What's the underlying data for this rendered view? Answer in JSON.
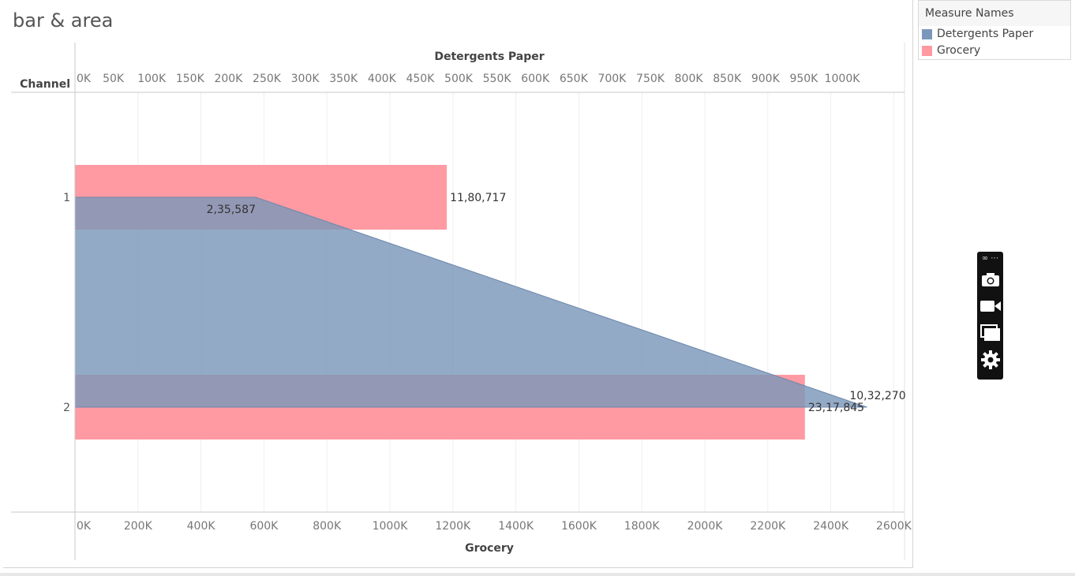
{
  "title": "bar & area",
  "legend": {
    "title": "Measure Names",
    "items": [
      {
        "label": "Detergents Paper",
        "color": "#7b97ba"
      },
      {
        "label": "Grocery",
        "color": "#ff9aa2"
      }
    ]
  },
  "toolbar": {
    "icons": [
      "link-icon",
      "more-icon",
      "camera-icon",
      "video-icon",
      "window-icon",
      "gear-icon"
    ]
  },
  "chart_data": {
    "type": "bar",
    "row_header": "Channel",
    "categories": [
      "1",
      "2"
    ],
    "x_top": {
      "label": "Detergents Paper",
      "range": [
        0,
        1000000
      ],
      "ticks": [
        "0K",
        "50K",
        "100K",
        "150K",
        "200K",
        "250K",
        "300K",
        "350K",
        "400K",
        "450K",
        "500K",
        "550K",
        "600K",
        "650K",
        "700K",
        "750K",
        "800K",
        "850K",
        "900K",
        "950K",
        "1000K"
      ]
    },
    "x_bottom": {
      "label": "Grocery",
      "range": [
        0,
        2600000
      ],
      "ticks": [
        "0K",
        "200K",
        "400K",
        "600K",
        "800K",
        "1000K",
        "1200K",
        "1400K",
        "1600K",
        "1800K",
        "2000K",
        "2200K",
        "2400K",
        "2600K"
      ]
    },
    "series": [
      {
        "name": "Detergents Paper",
        "mark": "area",
        "color": "#7b97ba",
        "values": [
          235587,
          1032270
        ],
        "labels": [
          "2,35,587",
          "10,32,270"
        ]
      },
      {
        "name": "Grocery",
        "mark": "bar",
        "color": "#ff9aa2",
        "values": [
          1180717,
          2317845
        ],
        "labels": [
          "11,80,717",
          "23,17,845"
        ]
      }
    ],
    "grid": true
  }
}
